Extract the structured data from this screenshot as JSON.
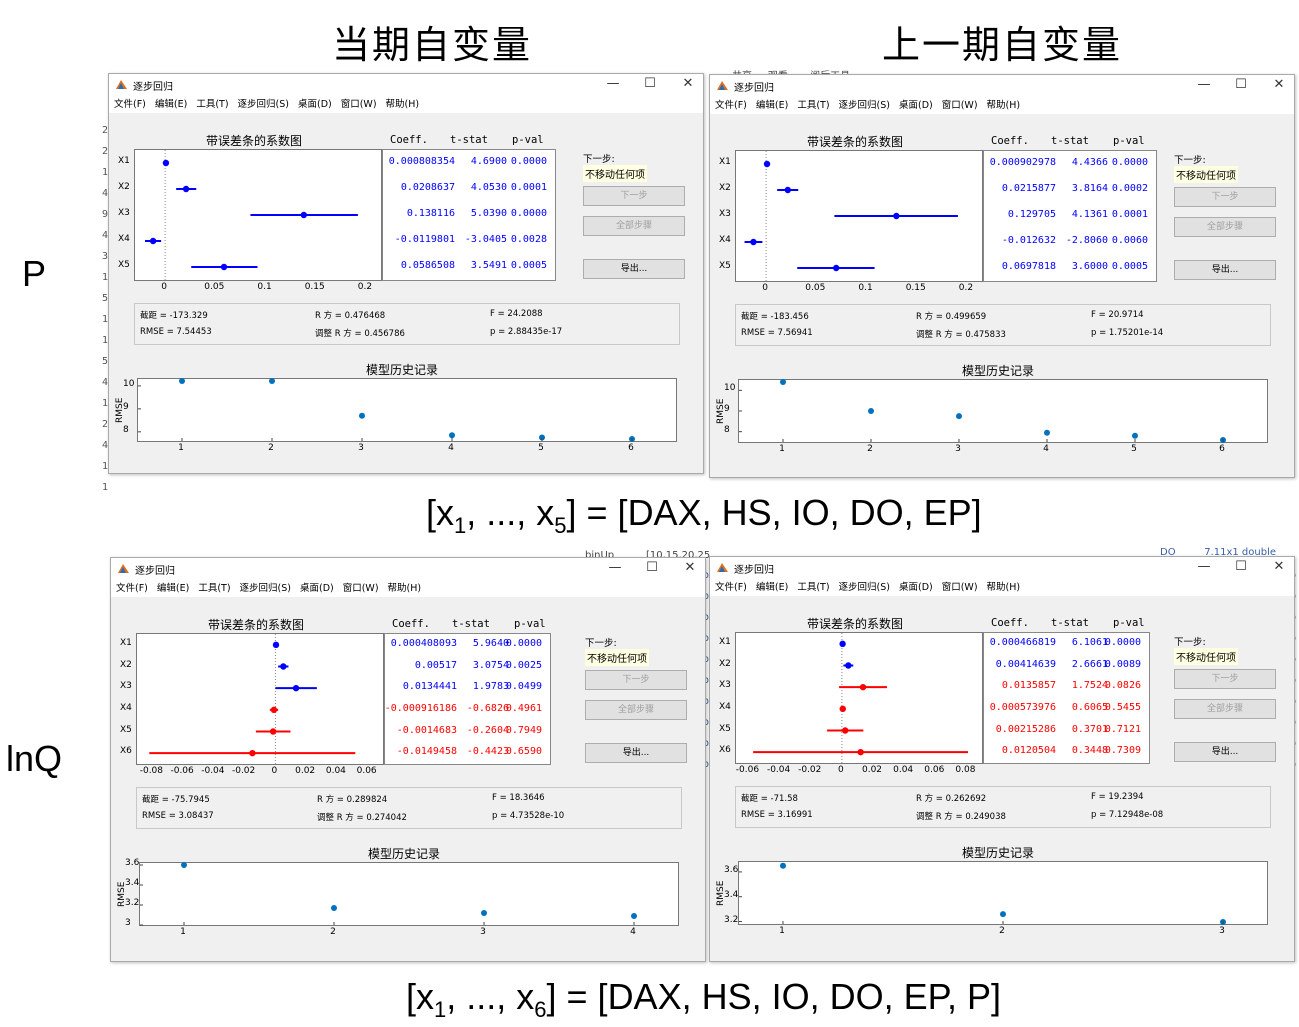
{
  "headings": [
    "当期自变量",
    "上一期自变量"
  ],
  "row_labels": [
    "P",
    "lnQ"
  ],
  "formulas": [
    {
      "pre": "[x",
      "s1": "1",
      "mid": ", ..., x",
      "s2": "5",
      "post": "] = [DAX, HS, IO, DO, EP]"
    },
    {
      "pre": "[x",
      "s1": "1",
      "mid": ", ..., x",
      "s2": "6",
      "post": "] = [DAX, HS, IO, DO, EP, P]"
    }
  ],
  "colors": {
    "in_model": "#0000ff",
    "out_model": "#ff0000",
    "history_point": "#0072bd"
  },
  "background": {
    "top_strip": [
      "共享",
      "观看",
      "阅后工具"
    ],
    "left_marks": [
      "2",
      "2",
      "1",
      "4",
      "9",
      "4",
      "3",
      "1",
      "5",
      "1",
      "1",
      "5",
      "4",
      "1",
      "2",
      "4",
      "1",
      "1"
    ],
    "mid_top": [
      "binUp",
      "[10,15,20,25"
    ],
    "right_top": [
      "DO",
      "7.11x1 double"
    ],
    "right_marks": [
      "b",
      "b",
      "b",
      "b",
      "b",
      "b",
      "b",
      "b",
      "b",
      "b",
      "b",
      "b",
      "b",
      "b",
      "b",
      "b",
      "b",
      "b",
      "b",
      "b"
    ]
  },
  "windows": [
    {
      "title": "逐步回归",
      "menu": [
        "文件(F)",
        "编辑(E)",
        "工具(T)",
        "逐步回归(S)",
        "桌面(D)",
        "窗口(W)",
        "帮助(H)"
      ],
      "controls": [
        "—",
        "☐",
        "✕"
      ],
      "coef_plot_title": "带误差条的系数图",
      "coef_headers": [
        "Coeff.",
        "t-stat",
        "p-val"
      ],
      "rows": [
        {
          "label": "X1",
          "coeff": "0.000808354",
          "tstat": "4.6900",
          "pval": "0.0000",
          "in": true,
          "est": 0.000808354,
          "lo": 0.0005,
          "hi": 0.0012
        },
        {
          "label": "X2",
          "coeff": "0.0208637",
          "tstat": "4.0530",
          "pval": "0.0001",
          "in": true,
          "est": 0.0208637,
          "lo": 0.011,
          "hi": 0.031
        },
        {
          "label": "X3",
          "coeff": "0.138116",
          "tstat": "5.0390",
          "pval": "0.0000",
          "in": true,
          "est": 0.138116,
          "lo": 0.085,
          "hi": 0.192
        },
        {
          "label": "X4",
          "coeff": "-0.0119801",
          "tstat": "-3.0405",
          "pval": "0.0028",
          "in": true,
          "est": -0.0119801,
          "lo": -0.02,
          "hi": -0.004
        },
        {
          "label": "X5",
          "coeff": "0.0586508",
          "tstat": "3.5491",
          "pval": "0.0005",
          "in": true,
          "est": 0.0586508,
          "lo": 0.026,
          "hi": 0.092
        }
      ],
      "xticks": [
        0,
        0.05,
        0.1,
        0.15,
        0.2
      ],
      "xtick_labels": [
        "0",
        "0.05",
        "0.1",
        "0.15",
        "0.2"
      ],
      "xlim": [
        -0.03,
        0.215
      ],
      "next_step_label": "下一步:",
      "next_step_value": "不移动任何项",
      "buttons": [
        "下一步",
        "全部步骤",
        "导出..."
      ],
      "stats": {
        "intercept": "截距 = -173.329",
        "r2": "R 方 = 0.476468",
        "F": "F = 24.2088",
        "rmse": "RMSE = 7.54453",
        "adj_r2": "调整 R 方 = 0.456786",
        "p": "p = 2.88435e-17"
      },
      "history_title": "模型历史记录",
      "history_ylabel": "RMSE",
      "history_x": [
        1,
        2,
        3,
        4,
        5,
        6
      ],
      "history_y": [
        10.25,
        10.25,
        8.7,
        7.85,
        7.75,
        7.55
      ],
      "history_yticks": [
        8,
        9,
        10
      ],
      "history_ylim": [
        7.6,
        10.3
      ]
    },
    {
      "title": "逐步回归",
      "menu": [
        "文件(F)",
        "编辑(E)",
        "工具(T)",
        "逐步回归(S)",
        "桌面(D)",
        "窗口(W)",
        "帮助(H)"
      ],
      "controls": [
        "—",
        "☐",
        "✕"
      ],
      "coef_plot_title": "带误差条的系数图",
      "coef_headers": [
        "Coeff.",
        "t-stat",
        "p-val"
      ],
      "rows": [
        {
          "label": "X1",
          "coeff": "0.000902978",
          "tstat": "4.4366",
          "pval": "0.0000",
          "in": true,
          "est": 0.000902978,
          "lo": 0.0005,
          "hi": 0.0013
        },
        {
          "label": "X2",
          "coeff": "0.0215877",
          "tstat": "3.8164",
          "pval": "0.0002",
          "in": true,
          "est": 0.0215877,
          "lo": 0.011,
          "hi": 0.032
        },
        {
          "label": "X3",
          "coeff": "0.129705",
          "tstat": "4.1361",
          "pval": "0.0001",
          "in": true,
          "est": 0.129705,
          "lo": 0.068,
          "hi": 0.191
        },
        {
          "label": "X4",
          "coeff": "-0.012632",
          "tstat": "-2.8060",
          "pval": "0.0060",
          "in": true,
          "est": -0.012632,
          "lo": -0.0215,
          "hi": -0.0037
        },
        {
          "label": "X5",
          "coeff": "0.0697818",
          "tstat": "3.6000",
          "pval": "0.0005",
          "in": true,
          "est": 0.0697818,
          "lo": 0.031,
          "hi": 0.108
        }
      ],
      "xticks": [
        0,
        0.05,
        0.1,
        0.15,
        0.2
      ],
      "xtick_labels": [
        "0",
        "0.05",
        "0.1",
        "0.15",
        "0.2"
      ],
      "xlim": [
        -0.03,
        0.215
      ],
      "next_step_label": "下一步:",
      "next_step_value": "不移动任何项",
      "buttons": [
        "下一步",
        "全部步骤",
        "导出..."
      ],
      "stats": {
        "intercept": "截距 = -183.456",
        "r2": "R 方 = 0.499659",
        "F": "F = 20.9714",
        "rmse": "RMSE = 7.56941",
        "adj_r2": "调整 R 方 = 0.475833",
        "p": "p = 1.75201e-14"
      },
      "history_title": "模型历史记录",
      "history_ylabel": "RMSE",
      "history_x": [
        1,
        2,
        3,
        4,
        5,
        6
      ],
      "history_y": [
        10.45,
        9.0,
        8.75,
        7.95,
        7.8,
        7.55
      ],
      "history_yticks": [
        8,
        9,
        10
      ],
      "history_ylim": [
        7.5,
        10.5
      ]
    },
    {
      "title": "逐步回归",
      "menu": [
        "文件(F)",
        "编辑(E)",
        "工具(T)",
        "逐步回归(S)",
        "桌面(D)",
        "窗口(W)",
        "帮助(H)"
      ],
      "controls": [
        "—",
        "☐",
        "✕"
      ],
      "coef_plot_title": "带误差条的系数图",
      "coef_headers": [
        "Coeff.",
        "t-stat",
        "p-val"
      ],
      "rows": [
        {
          "label": "X1",
          "coeff": "0.000408093",
          "tstat": "5.9640",
          "pval": "0.0000",
          "in": true,
          "est": 0.000408093,
          "lo": 0.0002,
          "hi": 0.0006
        },
        {
          "label": "X2",
          "coeff": "0.00517",
          "tstat": "3.0754",
          "pval": "0.0025",
          "in": true,
          "est": 0.00517,
          "lo": 0.0018,
          "hi": 0.0085
        },
        {
          "label": "X3",
          "coeff": "0.0134441",
          "tstat": "1.9783",
          "pval": "0.0499",
          "in": true,
          "est": 0.0134441,
          "lo": 0.0,
          "hi": 0.027
        },
        {
          "label": "X4",
          "coeff": "-0.000916186",
          "tstat": "-0.6826",
          "pval": "0.4961",
          "in": false,
          "est": -0.000916186,
          "lo": -0.0036,
          "hi": 0.0018
        },
        {
          "label": "X5",
          "coeff": "-0.0014683",
          "tstat": "-0.2604",
          "pval": "0.7949",
          "in": false,
          "est": -0.0014683,
          "lo": -0.0127,
          "hi": 0.0098
        },
        {
          "label": "X6",
          "coeff": "-0.0149458",
          "tstat": "-0.4423",
          "pval": "0.6590",
          "in": false,
          "est": -0.0149458,
          "lo": -0.082,
          "hi": 0.052
        }
      ],
      "xticks": [
        -0.08,
        -0.06,
        -0.04,
        -0.02,
        0,
        0.02,
        0.04,
        0.06
      ],
      "xtick_labels": [
        "-0.08",
        "-0.06",
        "-0.04",
        "-0.02",
        "0",
        "0.02",
        "0.04",
        "0.06"
      ],
      "xlim": [
        -0.09,
        0.07
      ],
      "next_step_label": "下一步:",
      "next_step_value": "不移动任何项",
      "buttons": [
        "下一步",
        "全部步骤",
        "导出..."
      ],
      "stats": {
        "intercept": "截距 = -75.7945",
        "r2": "R 方 = 0.289824",
        "F": "F = 18.3646",
        "rmse": "RMSE = 3.08437",
        "adj_r2": "调整 R 方 = 0.274042",
        "p": "p = 4.73528e-10"
      },
      "history_title": "模型历史记录",
      "history_ylabel": "RMSE",
      "history_x": [
        1,
        2,
        3,
        4
      ],
      "history_y": [
        3.61,
        3.17,
        3.12,
        3.09
      ],
      "history_yticks": [
        3,
        3.2,
        3.4,
        3.6
      ],
      "history_yticklabels": [
        "3",
        "3.2",
        "3.4",
        "3.6"
      ],
      "history_ylim": [
        3.0,
        3.62
      ]
    },
    {
      "title": "逐步回归",
      "menu": [
        "文件(F)",
        "编辑(E)",
        "工具(T)",
        "逐步回归(S)",
        "桌面(D)",
        "窗口(W)",
        "帮助(H)"
      ],
      "controls": [
        "—",
        "☐",
        "✕"
      ],
      "coef_plot_title": "带误差条的系数图",
      "coef_headers": [
        "Coeff.",
        "t-stat",
        "p-val"
      ],
      "rows": [
        {
          "label": "X1",
          "coeff": "0.000466819",
          "tstat": "6.1061",
          "pval": "0.0000",
          "in": true,
          "est": 0.000466819,
          "lo": 0.0003,
          "hi": 0.0006
        },
        {
          "label": "X2",
          "coeff": "0.00414639",
          "tstat": "2.6661",
          "pval": "0.0089",
          "in": true,
          "est": 0.00414639,
          "lo": 0.001,
          "hi": 0.0073
        },
        {
          "label": "X3",
          "coeff": "0.0135857",
          "tstat": "1.7524",
          "pval": "0.0826",
          "in": false,
          "est": 0.0135857,
          "lo": -0.0018,
          "hi": 0.029
        },
        {
          "label": "X4",
          "coeff": "0.000573976",
          "tstat": "0.6065",
          "pval": "0.5455",
          "in": false,
          "est": 0.000573976,
          "lo": -0.0013,
          "hi": 0.0025
        },
        {
          "label": "X5",
          "coeff": "0.00215286",
          "tstat": "0.3701",
          "pval": "0.7121",
          "in": false,
          "est": 0.00215286,
          "lo": -0.0095,
          "hi": 0.0138
        },
        {
          "label": "X6",
          "coeff": "0.0120504",
          "tstat": "0.3448",
          "pval": "0.7309",
          "in": false,
          "est": 0.0120504,
          "lo": -0.057,
          "hi": 0.081
        }
      ],
      "xticks": [
        -0.06,
        -0.04,
        -0.02,
        0,
        0.02,
        0.04,
        0.06,
        0.08
      ],
      "xtick_labels": [
        "-0.06",
        "-0.04",
        "-0.02",
        "0",
        "0.02",
        "0.04",
        "0.06",
        "0.08"
      ],
      "xlim": [
        -0.068,
        0.09
      ],
      "next_step_label": "下一步:",
      "next_step_value": "不移动任何项",
      "buttons": [
        "下一步",
        "全部步骤",
        "导出..."
      ],
      "stats": {
        "intercept": "截距 = -71.58",
        "r2": "R 方 = 0.262692",
        "F": "F = 19.2394",
        "rmse": "RMSE = 3.16991",
        "adj_r2": "调整 R 方 = 0.249038",
        "p": "p = 7.12948e-08"
      },
      "history_title": "模型历史记录",
      "history_ylabel": "RMSE",
      "history_x": [
        1,
        2,
        3
      ],
      "history_y": [
        3.65,
        3.26,
        3.18
      ],
      "history_yticks": [
        3.2,
        3.4,
        3.6
      ],
      "history_ylim": [
        3.18,
        3.68
      ]
    }
  ]
}
